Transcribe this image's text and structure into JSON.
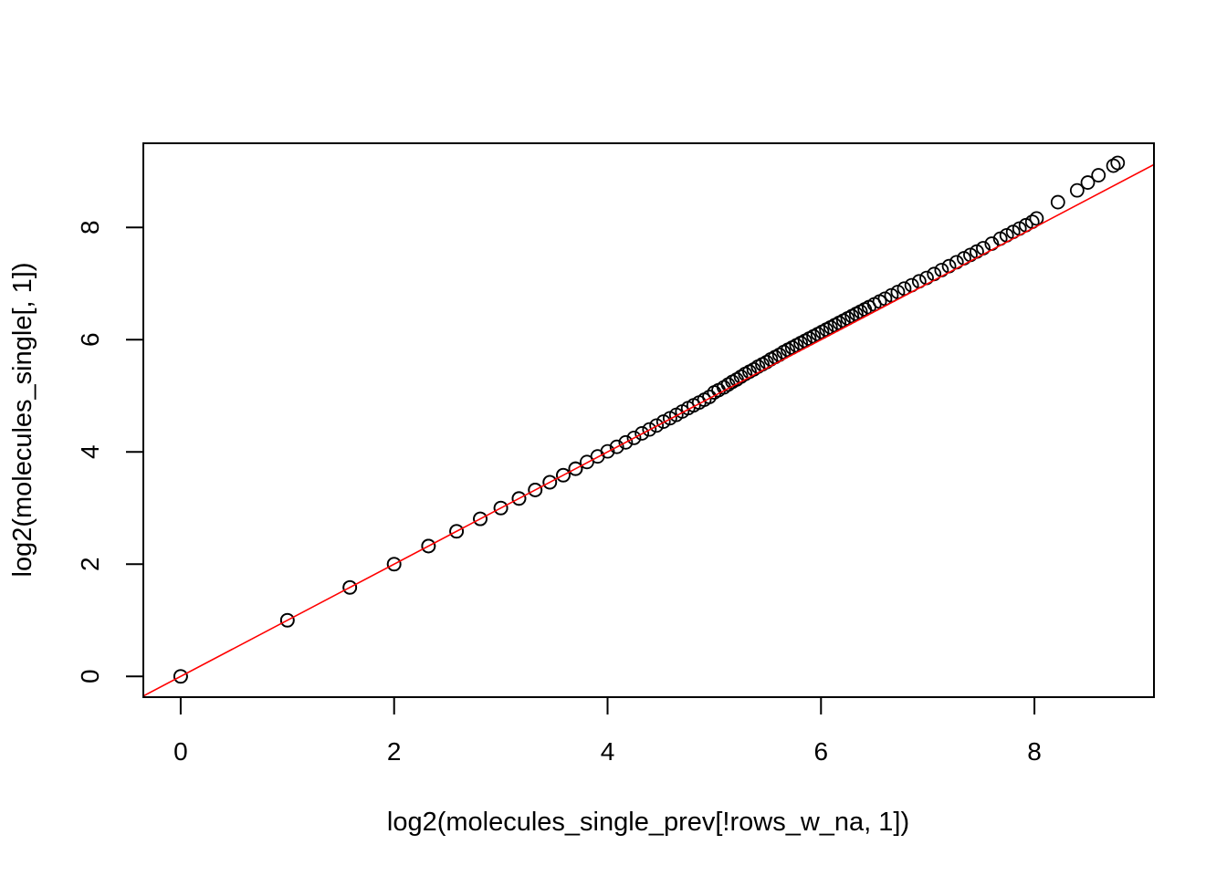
{
  "chart_data": {
    "type": "scatter",
    "title": "",
    "xlabel": "log2(molecules_single_prev[!rows_w_na, 1])",
    "ylabel": "log2(molecules_single[, 1])",
    "xlim": [
      -0.35,
      9.12
    ],
    "ylim": [
      -0.37,
      9.5
    ],
    "xticks": [
      0,
      2,
      4,
      6,
      8
    ],
    "yticks": [
      0,
      2,
      4,
      6,
      8
    ],
    "xtick_labels": [
      "0",
      "2",
      "4",
      "6",
      "8"
    ],
    "ytick_labels": [
      "0",
      "2",
      "4",
      "6",
      "8"
    ],
    "grid": false,
    "legend": "none",
    "colors": {
      "points": "#000000",
      "reference_line": "#ff0000",
      "frame": "#000000"
    },
    "reference_line": {
      "intercept": 0,
      "slope": 1
    },
    "points": {
      "x": [
        0,
        0,
        1,
        1,
        1.585,
        1.585,
        2,
        2,
        2.322,
        2.322,
        2.585,
        2.585,
        2.807,
        2.807,
        3,
        3,
        3.17,
        3.17,
        3.322,
        3.322,
        3.459,
        3.459,
        3.585,
        3.585,
        3.7,
        3.7,
        3.807,
        3.907,
        4,
        4.087,
        4.17,
        4.248,
        4.322,
        4.392,
        4.459,
        4.524,
        4.585,
        4.644,
        4.7,
        4.755,
        4.807,
        4.858,
        4.907,
        4.954,
        5,
        5.04,
        5.09,
        5.13,
        5.17,
        5.21,
        5.25,
        5.29,
        5.33,
        5.37,
        5.41,
        5.45,
        5.49,
        5.53,
        5.57,
        5.61,
        5.65,
        5.69,
        5.73,
        5.77,
        5.81,
        5.85,
        5.89,
        5.93,
        5.97,
        6.01,
        6.05,
        6.09,
        6.13,
        6.17,
        6.21,
        6.25,
        6.29,
        6.33,
        6.37,
        6.41,
        6.45,
        6.5,
        6.55,
        6.6,
        6.66,
        6.72,
        6.78,
        6.85,
        6.92,
        6.99,
        7.06,
        7.13,
        7.2,
        7.27,
        7.34,
        7.4,
        7.46,
        7.52,
        7.6,
        7.68,
        7.74,
        7.8,
        7.86,
        7.92,
        7.98,
        8.02,
        8.22,
        8.4,
        8.5,
        8.6,
        8.74,
        8.78
      ],
      "y": [
        0,
        0,
        1,
        1,
        1.585,
        1.585,
        2,
        2,
        2.322,
        2.322,
        2.585,
        2.585,
        2.807,
        2.807,
        3,
        3,
        3.17,
        3.17,
        3.322,
        3.322,
        3.459,
        3.459,
        3.585,
        3.585,
        3.7,
        3.7,
        3.82,
        3.92,
        4.01,
        4.09,
        4.17,
        4.25,
        4.33,
        4.4,
        4.47,
        4.54,
        4.6,
        4.66,
        4.72,
        4.78,
        4.83,
        4.88,
        4.93,
        4.98,
        5.06,
        5.1,
        5.15,
        5.2,
        5.25,
        5.29,
        5.34,
        5.39,
        5.43,
        5.47,
        5.52,
        5.56,
        5.6,
        5.65,
        5.69,
        5.73,
        5.78,
        5.82,
        5.86,
        5.9,
        5.94,
        5.98,
        6.02,
        6.06,
        6.1,
        6.14,
        6.18,
        6.22,
        6.26,
        6.3,
        6.34,
        6.38,
        6.42,
        6.46,
        6.5,
        6.54,
        6.58,
        6.63,
        6.68,
        6.73,
        6.79,
        6.85,
        6.91,
        6.97,
        7.04,
        7.1,
        7.17,
        7.24,
        7.31,
        7.38,
        7.45,
        7.51,
        7.57,
        7.63,
        7.71,
        7.8,
        7.86,
        7.92,
        7.98,
        8.04,
        8.1,
        8.16,
        8.45,
        8.66,
        8.8,
        8.93,
        9.1,
        9.15
      ]
    }
  }
}
